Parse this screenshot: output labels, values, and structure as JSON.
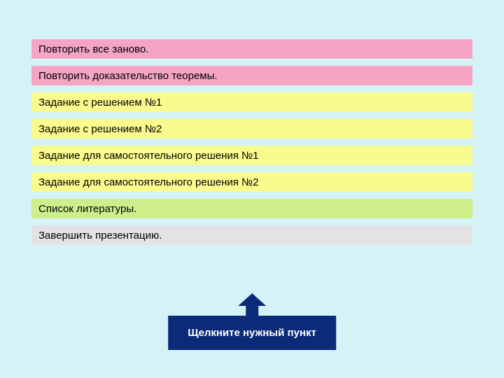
{
  "background_color": "#d5f3f7",
  "menu": {
    "items": [
      {
        "label": "Повторить все заново.",
        "bg_color": "#f5a4c4",
        "text_color": "#000000"
      },
      {
        "label": "Повторить доказательство теоремы.",
        "bg_color": "#f5a4c4",
        "text_color": "#000000"
      },
      {
        "label": "Задание с решением №1",
        "bg_color": "#fafb8e",
        "text_color": "#000000"
      },
      {
        "label": "Задание с решением №2",
        "bg_color": "#fafb8e",
        "text_color": "#000000"
      },
      {
        "label": "Задание для самостоятельного решения №1",
        "bg_color": "#fafb8e",
        "text_color": "#000000"
      },
      {
        "label": "Задание для самостоятельного решения №2",
        "bg_color": "#fafb8e",
        "text_color": "#000000"
      },
      {
        "label": "Список литературы.",
        "bg_color": "#ceee8c",
        "text_color": "#000000"
      },
      {
        "label": "Завершить презентацию.",
        "bg_color": "#e3e3e3",
        "text_color": "#000000"
      }
    ]
  },
  "callout": {
    "label": "Щелкните нужный пункт",
    "bg_color": "#0b2b78",
    "text_color": "#ffffff",
    "arrow_color": "#0b2b78"
  }
}
